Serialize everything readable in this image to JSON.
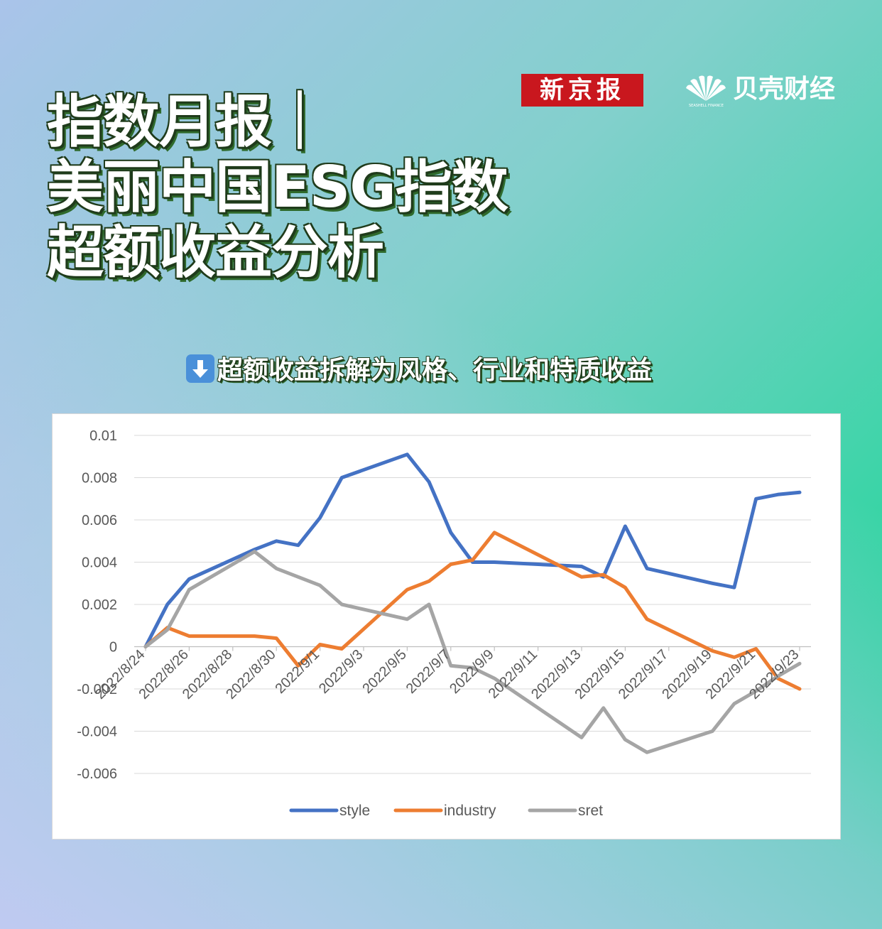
{
  "title": {
    "line1": "指数月报｜",
    "line2": "美丽中国ESG指数",
    "line3": "超额收益分析"
  },
  "logos": {
    "xinjingbao": "新京报",
    "beike": "贝壳财经",
    "beike_sub": "SEASHELL FINANCE"
  },
  "subtitle": "超额收益拆解为风格、行业和特质收益",
  "colors": {
    "style": "#4472c4",
    "industry": "#ed7d31",
    "sret": "#a5a5a5"
  },
  "chart_data": {
    "type": "line",
    "x": [
      "2022/8/24",
      "2022/8/25",
      "2022/8/26",
      "2022/8/29",
      "2022/8/30",
      "2022/8/31",
      "2022/9/1",
      "2022/9/2",
      "2022/9/5",
      "2022/9/6",
      "2022/9/7",
      "2022/9/8",
      "2022/9/9",
      "2022/9/13",
      "2022/9/14",
      "2022/9/15",
      "2022/9/16",
      "2022/9/19",
      "2022/9/20",
      "2022/9/21",
      "2022/9/22",
      "2022/9/23"
    ],
    "tick_labels": [
      "2022/8/24",
      "2022/8/26",
      "2022/8/28",
      "2022/8/30",
      "2022/9/1",
      "2022/9/3",
      "2022/9/5",
      "2022/9/7",
      "2022/9/9",
      "2022/9/11",
      "2022/9/13",
      "2022/9/15",
      "2022/9/17",
      "2022/9/19",
      "2022/9/21",
      "2022/9/23"
    ],
    "series": [
      {
        "name": "style",
        "values": [
          0.0,
          0.002,
          0.0032,
          0.0046,
          0.005,
          0.0048,
          0.0061,
          0.008,
          0.0091,
          0.0078,
          0.0054,
          0.004,
          0.004,
          0.0038,
          0.0033,
          0.0057,
          0.0037,
          0.003,
          0.0028,
          0.007,
          0.0072,
          0.0073
        ]
      },
      {
        "name": "industry",
        "values": [
          0.0,
          0.0009,
          0.0005,
          0.0005,
          0.0004,
          -0.0009,
          0.0001,
          -0.0001,
          0.0027,
          0.0031,
          0.0039,
          0.0041,
          0.0054,
          0.0033,
          0.0034,
          0.0028,
          0.0013,
          -0.0002,
          -0.0005,
          -0.0001,
          -0.0015,
          -0.002
        ]
      },
      {
        "name": "sret",
        "values": [
          0.0,
          0.0008,
          0.0027,
          0.0045,
          0.0037,
          0.0033,
          0.0029,
          0.002,
          0.0013,
          0.002,
          -0.0009,
          -0.001,
          -0.0015,
          -0.0043,
          -0.0029,
          -0.0044,
          -0.005,
          -0.004,
          -0.0027,
          -0.0021,
          -0.0014,
          -0.0008
        ]
      }
    ],
    "y_ticks": [
      "0.01",
      "0.008",
      "0.006",
      "0.004",
      "0.002",
      "0",
      "-0.002",
      "-0.004",
      "-0.006"
    ],
    "ylim": [
      -0.006,
      0.01
    ],
    "grid": true,
    "legend": "bottom"
  }
}
